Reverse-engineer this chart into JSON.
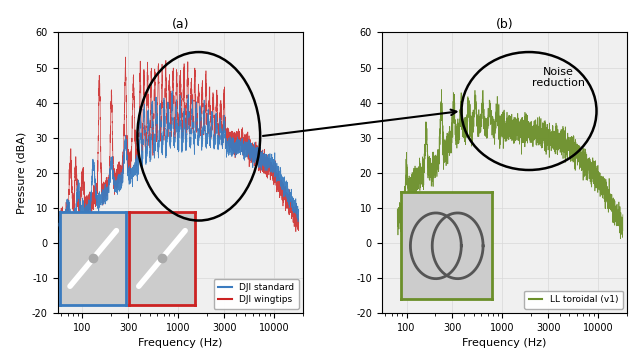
{
  "title_a": "(a)",
  "title_b": "(b)",
  "xlabel": "Frequency (Hz)",
  "ylabel": "Pressure (dBA)",
  "ylim": [
    -20,
    60
  ],
  "xlim": [
    55,
    20000
  ],
  "yticks": [
    -20,
    -10,
    0,
    10,
    20,
    30,
    40,
    50,
    60
  ],
  "xtick_vals": [
    100,
    300,
    1000,
    3000,
    10000
  ],
  "xtick_labels": [
    "100",
    "300",
    "1000",
    "3000",
    "10000"
  ],
  "color_blue": "#3a7bbf",
  "color_red": "#cc2222",
  "color_green": "#6b8f2a",
  "legend_labels": [
    "DJI standard",
    "DJI wingtips",
    "LL toroidal (v1)"
  ],
  "noise_reduction_text": "Noise\nreduction",
  "bg_color": "#f0f0f0",
  "grid_color": "#d8d8d8",
  "inset_blue_bg": "#c8d5e5",
  "inset_red_bg": "#d5c8c8",
  "inset_green_bg": "#c8cebc"
}
